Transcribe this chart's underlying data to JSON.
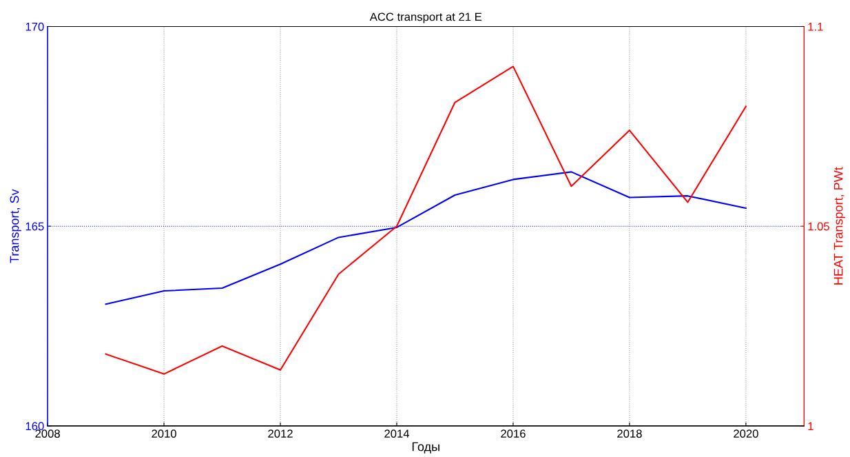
{
  "chart_data": {
    "type": "line",
    "title": "ACC transport at 21 E",
    "xlabel": "Годы",
    "ylabel": "Transport, Sv",
    "y2label": "HEAT Transport, PWt",
    "x": [
      2009,
      2010,
      2011,
      2012,
      2013,
      2014,
      2015,
      2016,
      2017,
      2018,
      2019,
      2020
    ],
    "series": [
      {
        "color": "#0000ff",
        "values": [
          163.05,
          163.38,
          163.45,
          164.05,
          164.72,
          164.97,
          165.78,
          166.17,
          166.36,
          165.72,
          165.76,
          165.45
        ]
      },
      {
        "color": "#ff0000",
        "axis": "y2",
        "values": [
          1.018,
          1.013,
          1.02,
          1.014,
          1.038,
          1.05,
          1.081,
          1.09,
          1.06,
          1.074,
          1.056,
          1.08
        ]
      }
    ],
    "xlim": [
      2008,
      2021
    ],
    "xticks": [
      2008,
      2010,
      2012,
      2014,
      2016,
      2018,
      2020
    ],
    "ylim": [
      160,
      170
    ],
    "yticks": [
      160,
      165,
      170
    ],
    "y2lim": [
      1.0,
      1.1
    ],
    "y2ticks": [
      {
        "value": 1.0,
        "label": "1"
      },
      1.05,
      1.1
    ],
    "grid": "x",
    "ref_lines": [
      {
        "axis": "y",
        "value": 165,
        "color": "#0000ff",
        "line_style": "dotted"
      }
    ],
    "marker": "none",
    "line_style": "solid"
  }
}
